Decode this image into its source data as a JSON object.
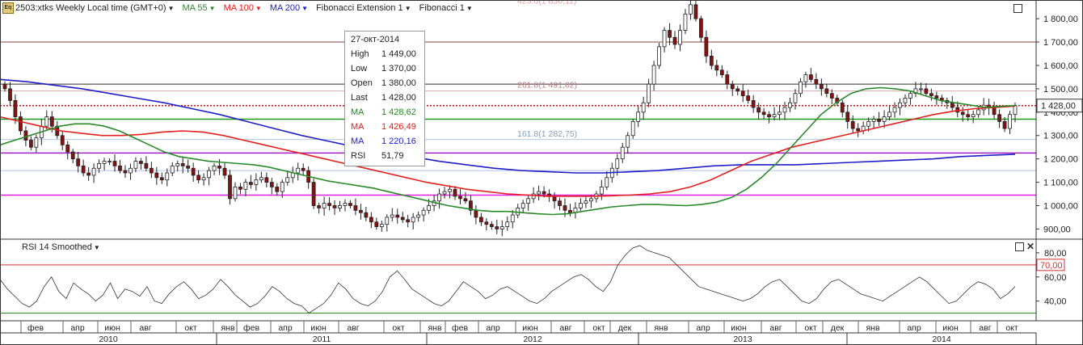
{
  "toolbar": {
    "symbol_icon": "Eq",
    "instrument": "2503:xtks Weekly Local time (GMT+0)",
    "ma1": "MA 55",
    "ma2": "MA 100",
    "ma3": "MA 200",
    "fib_ext": "Fibonacci Extension 1",
    "fib": "Fibonacci 1"
  },
  "fib_labels": {
    "l423": "423.6(1 830,11)",
    "l261": "261.8(1 491,82)",
    "l161": "161.8(1 282,75)"
  },
  "price_axis": {
    "labels": [
      "1 800,00",
      "1 700,00",
      "1 600,00",
      "1 500,00",
      "1 400,00",
      "1 300,00",
      "1 200,00",
      "1 100,00",
      "1 000,00",
      "900,00"
    ],
    "current_price": "1 428,00"
  },
  "rsi_panel": {
    "title": "RSI 14 Smoothed",
    "labels": [
      "80,00",
      "60,00",
      "40,00"
    ],
    "current_level": "70,00"
  },
  "tooltip": {
    "date": "27-окт-2014",
    "rows": [
      {
        "k": "High",
        "v": "1 449,00",
        "color": "#222222"
      },
      {
        "k": "Low",
        "v": "1 370,00",
        "color": "#222222"
      },
      {
        "k": "Open",
        "v": "1 380,00",
        "color": "#222222"
      },
      {
        "k": "Last",
        "v": "1 428,00",
        "color": "#222222"
      },
      {
        "k": "MA",
        "v": "1 428,62",
        "color": "#1e8a1e"
      },
      {
        "k": "MA",
        "v": "1 426,49",
        "color": "#e02020"
      },
      {
        "k": "MA",
        "v": "1 220,16",
        "color": "#2020c8"
      },
      {
        "k": "RSI",
        "v": "51,79",
        "color": "#222222"
      }
    ]
  },
  "time_axis": {
    "months": [
      "фев",
      "апр",
      "июн",
      "авг",
      "окт",
      "янв",
      "фев",
      "апр",
      "июн",
      "авг",
      "окт",
      "янв",
      "фев",
      "апр",
      "июн",
      "авг",
      "окт",
      "дек",
      "янв",
      "апр",
      "июн",
      "авг",
      "окт",
      "дек",
      "янв",
      "апр",
      "июн",
      "авг",
      "окт"
    ],
    "years": [
      "2010",
      "2011",
      "2012",
      "2013",
      "2014"
    ]
  },
  "colors": {
    "ma55": "#2a8a2a",
    "ma100": "#e42020",
    "ma200": "#1e1ec8",
    "magenta_line": "#e020e0",
    "purple_line": "#a020c0",
    "green_line": "#1a9a1a",
    "red_dotted": "#d01010",
    "brown_line": "#b08080",
    "candle_up": "#ffffff",
    "candle_down": "#8a1010"
  },
  "chart_data": {
    "type": "candlestick",
    "timeframe": "Weekly",
    "y_range": [
      860,
      1880
    ],
    "rsi_range": [
      25,
      90
    ],
    "close_series": [
      1500,
      1450,
      1380,
      1320,
      1280,
      1250,
      1290,
      1340,
      1380,
      1340,
      1300,
      1260,
      1230,
      1200,
      1170,
      1140,
      1130,
      1160,
      1180,
      1190,
      1190,
      1170,
      1150,
      1140,
      1160,
      1190,
      1180,
      1160,
      1140,
      1120,
      1110,
      1140,
      1170,
      1180,
      1170,
      1160,
      1130,
      1110,
      1120,
      1150,
      1170,
      1160,
      1130,
      1030,
      1080,
      1070,
      1100,
      1090,
      1110,
      1120,
      1100,
      1080,
      1060,
      1100,
      1120,
      1140,
      1160,
      1150,
      1100,
      1000,
      990,
      1010,
      1000,
      990,
      1000,
      1010,
      1000,
      980,
      970,
      950,
      930,
      910,
      920,
      950,
      960,
      950,
      940,
      930,
      950,
      960,
      980,
      1000,
      1020,
      1050,
      1060,
      1070,
      1040,
      1030,
      1020,
      980,
      950,
      930,
      920,
      910,
      900,
      910,
      930,
      960,
      990,
      1010,
      1030,
      1050,
      1060,
      1050,
      1040,
      1020,
      1000,
      980,
      970,
      990,
      1010,
      1020,
      1030,
      1050,
      1080,
      1120,
      1160,
      1200,
      1250,
      1300,
      1360,
      1400,
      1440,
      1520,
      1600,
      1680,
      1750,
      1720,
      1690,
      1750,
      1820,
      1860,
      1800,
      1720,
      1640,
      1600,
      1580,
      1560,
      1520,
      1500,
      1490,
      1470,
      1450,
      1420,
      1400,
      1390,
      1380,
      1390,
      1400,
      1420,
      1440,
      1480,
      1530,
      1560,
      1540,
      1520,
      1500,
      1480,
      1460,
      1440,
      1400,
      1360,
      1330,
      1320,
      1340,
      1360,
      1370,
      1360,
      1380,
      1400,
      1420,
      1440,
      1460,
      1480,
      1500,
      1500,
      1480,
      1470,
      1460,
      1450,
      1440,
      1420,
      1400,
      1390,
      1380,
      1390,
      1410,
      1430,
      1420,
      1390,
      1360,
      1330,
      1390,
      1428
    ],
    "ma55": [
      1260,
      1280,
      1300,
      1320,
      1340,
      1350,
      1350,
      1340,
      1320,
      1290,
      1260,
      1230,
      1210,
      1200,
      1190,
      1185,
      1180,
      1175,
      1165,
      1150,
      1135,
      1120,
      1105,
      1095,
      1085,
      1075,
      1060,
      1045,
      1030,
      1015,
      1000,
      990,
      980,
      975,
      975,
      970,
      965,
      962,
      965,
      975,
      985,
      995,
      1000,
      1005,
      1005,
      1002,
      1000,
      1005,
      1015,
      1035,
      1070,
      1120,
      1180,
      1250,
      1320,
      1390,
      1440,
      1480,
      1500,
      1505,
      1500,
      1490,
      1470,
      1450,
      1440,
      1430,
      1420,
      1425,
      1428
    ],
    "ma100": [
      1380,
      1360,
      1340,
      1320,
      1310,
      1300,
      1300,
      1305,
      1315,
      1320,
      1315,
      1300,
      1280,
      1260,
      1240,
      1220,
      1200,
      1180,
      1160,
      1140,
      1120,
      1100,
      1085,
      1070,
      1060,
      1050,
      1045,
      1040,
      1040,
      1040,
      1042,
      1045,
      1050,
      1060,
      1080,
      1110,
      1150,
      1190,
      1220,
      1250,
      1270,
      1290,
      1310,
      1330,
      1350,
      1370,
      1390,
      1405,
      1415,
      1420,
      1426
    ],
    "ma200": [
      1540,
      1530,
      1515,
      1500,
      1480,
      1460,
      1440,
      1415,
      1390,
      1360,
      1330,
      1300,
      1275,
      1250,
      1230,
      1210,
      1190,
      1175,
      1160,
      1150,
      1145,
      1140,
      1140,
      1145,
      1150,
      1160,
      1170,
      1175,
      1175,
      1175,
      1180,
      1185,
      1190,
      1195,
      1200,
      1210,
      1215,
      1220
    ],
    "rsi": [
      58,
      50,
      44,
      38,
      35,
      40,
      52,
      60,
      48,
      42,
      55,
      50,
      46,
      40,
      45,
      55,
      42,
      50,
      48,
      44,
      52,
      40,
      38,
      46,
      52,
      56,
      50,
      42,
      45,
      50,
      58,
      52,
      45,
      40,
      35,
      38,
      44,
      52,
      48,
      42,
      38,
      36,
      30,
      34,
      38,
      45,
      55,
      50,
      42,
      38,
      36,
      40,
      48,
      60,
      65,
      58,
      50,
      46,
      42,
      38,
      36,
      40,
      48,
      56,
      52,
      48,
      42,
      45,
      50,
      52,
      48,
      44,
      40,
      38,
      42,
      48,
      52,
      56,
      60,
      62,
      58,
      52,
      48,
      56,
      70,
      78,
      84,
      86,
      82,
      80,
      78,
      76,
      70,
      64,
      58,
      52,
      50,
      48,
      46,
      44,
      42,
      40,
      42,
      46,
      52,
      56,
      58,
      52,
      46,
      40,
      38,
      42,
      50,
      56,
      58,
      54,
      50,
      46,
      44,
      42,
      40,
      44,
      48,
      52,
      56,
      60,
      56,
      50,
      44,
      38,
      40,
      46,
      52,
      56,
      54,
      50,
      42,
      46,
      52
    ]
  }
}
